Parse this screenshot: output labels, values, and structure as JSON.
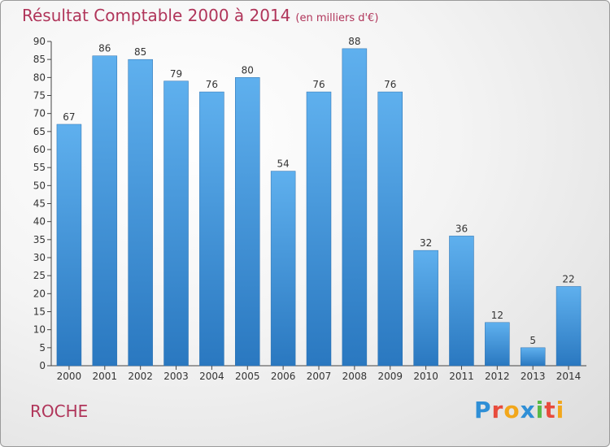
{
  "chart_data": {
    "type": "bar",
    "title": "Résultat Comptable 2000 à 2014",
    "subtitle": "(en milliers d'€)",
    "categories": [
      "2000",
      "2001",
      "2002",
      "2003",
      "2004",
      "2005",
      "2006",
      "2007",
      "2008",
      "2009",
      "2010",
      "2011",
      "2012",
      "2013",
      "2014"
    ],
    "values": [
      67,
      86,
      85,
      79,
      76,
      80,
      54,
      76,
      88,
      76,
      32,
      36,
      12,
      5,
      22
    ],
    "ylim": [
      0,
      90
    ],
    "ytick_step": 5,
    "grid": false,
    "bar_color": "#3a8fd9",
    "xlabel": "",
    "ylabel": ""
  },
  "commune": "ROCHE",
  "logo": {
    "letters": [
      {
        "ch": "P",
        "color": "#2f8fd6"
      },
      {
        "ch": "r",
        "color": "#e84b3c"
      },
      {
        "ch": "o",
        "color": "#f2a71b"
      },
      {
        "ch": "x",
        "color": "#2f8fd6"
      },
      {
        "ch": "i",
        "color": "#58b947"
      },
      {
        "ch": "t",
        "color": "#e84b3c"
      },
      {
        "ch": "i",
        "color": "#f2a71b"
      }
    ]
  }
}
